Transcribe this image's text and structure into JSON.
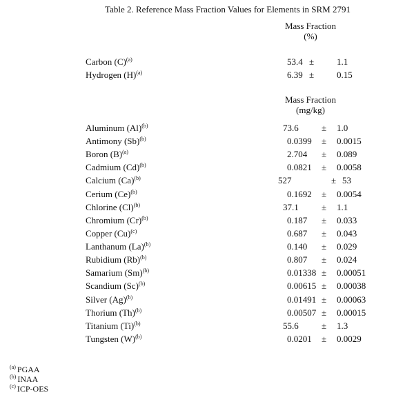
{
  "title": "Table 2.  Reference Mass Fraction Values for Elements in SRM 2791",
  "sections": [
    {
      "header": [
        "Mass Fraction",
        "(%)"
      ],
      "rows": [
        {
          "name": "Carbon (C)",
          "note": "(a)",
          "value": "53.4",
          "pm": "±",
          "unc": "1.1"
        },
        {
          "name": "Hydrogen (H)",
          "note": "(a)",
          "value": "6.39",
          "pm": "±",
          "unc": "0.15"
        }
      ]
    },
    {
      "header": [
        "Mass Fraction",
        "(mg/kg)"
      ],
      "rows": [
        {
          "name": "Aluminum (Al)",
          "note": "(b)",
          "value": "73.6",
          "pm": "±",
          "unc": "1.0"
        },
        {
          "name": "Antimony (Sb)",
          "note": "(b)",
          "value": "0.0399",
          "pm": "±",
          "unc": "0.0015"
        },
        {
          "name": "Boron (B)",
          "note": "(a)",
          "value": "2.704",
          "pm": "±",
          "unc": "0.089"
        },
        {
          "name": "Cadmium (Cd)",
          "note": "(b)",
          "value": "0.0821",
          "pm": "±",
          "unc": "0.0058"
        },
        {
          "name": "Calcium (Ca)",
          "note": "(b)",
          "value": "527",
          "pm": "±",
          "unc": "53"
        },
        {
          "name": "Cerium (Ce)",
          "note": "(b)",
          "value": "0.1692",
          "pm": "±",
          "unc": "0.0054"
        },
        {
          "name": "Chlorine (Cl)",
          "note": "(b)",
          "value": "37.1",
          "pm": "±",
          "unc": "1.1"
        },
        {
          "name": "Chromium (Cr)",
          "note": "(b)",
          "value": "0.187",
          "pm": "±",
          "unc": "0.033"
        },
        {
          "name": "Copper (Cu)",
          "note": "(c)",
          "value": "0.687",
          "pm": "±",
          "unc": "0.043"
        },
        {
          "name": "Lanthanum (La)",
          "note": "(b)",
          "value": "0.140",
          "pm": "±",
          "unc": "0.029"
        },
        {
          "name": "Rubidium (Rb)",
          "note": "(b)",
          "value": "0.807",
          "pm": "±",
          "unc": "0.024"
        },
        {
          "name": "Samarium (Sm)",
          "note": "(b)",
          "value": "0.01338",
          "pm": "±",
          "unc": "0.00051"
        },
        {
          "name": "Scandium (Sc)",
          "note": "(b)",
          "value": "0.00615",
          "pm": "±",
          "unc": "0.00038"
        },
        {
          "name": "Silver (Ag)",
          "note": "(b)",
          "value": "0.01491",
          "pm": "±",
          "unc": "0.00063"
        },
        {
          "name": "Thorium (Th)",
          "note": "(b)",
          "value": "0.00507",
          "pm": "±",
          "unc": "0.00015"
        },
        {
          "name": "Titanium (Ti)",
          "note": "(b)",
          "value": "55.6",
          "pm": "±",
          "unc": "1.3"
        },
        {
          "name": "Tungsten (W)",
          "note": "(b)",
          "value": "0.0201",
          "pm": "±",
          "unc": "0.0029"
        }
      ]
    }
  ],
  "footnotes": [
    {
      "mark": "(a)",
      "text": "PGAA"
    },
    {
      "mark": "(b)",
      "text": "INAA"
    },
    {
      "mark": "(c)",
      "text": "ICP-OES"
    }
  ]
}
